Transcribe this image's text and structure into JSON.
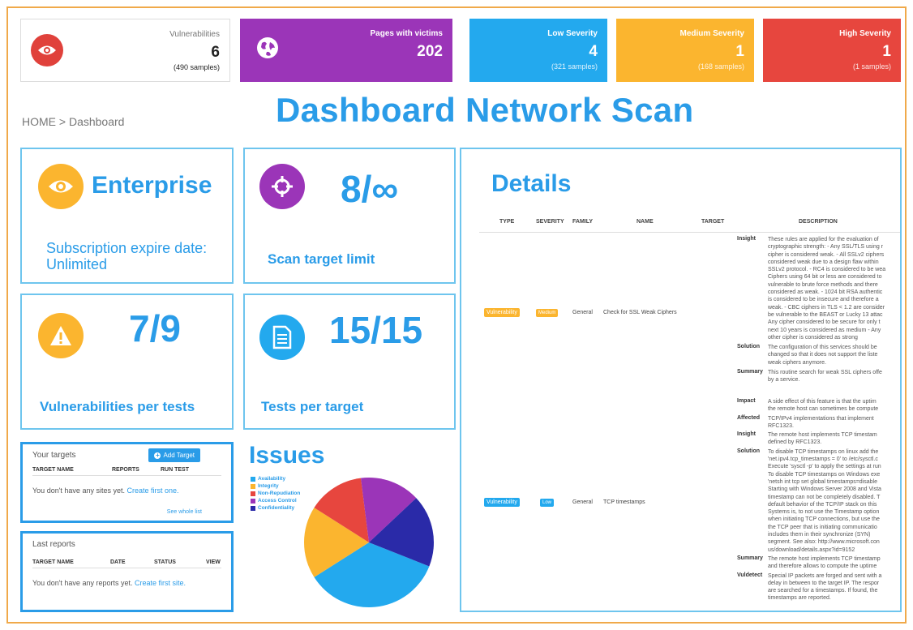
{
  "stats": [
    {
      "label": "Vulnerabilities",
      "value": "6",
      "samples": "(490 samples)",
      "color": "#e0413b",
      "icon": "eye-icon"
    },
    {
      "label": "Pages with victims",
      "value": "202",
      "samples": "",
      "color": "#9b35b8",
      "icon": "globe-icon"
    },
    {
      "label": "Low Severity",
      "value": "4",
      "samples": "(321 samples)",
      "color": "#23a9ee"
    },
    {
      "label": "Medium Severity",
      "value": "1",
      "samples": "(168 samples)",
      "color": "#fbb52f"
    },
    {
      "label": "High Severity",
      "value": "1",
      "samples": "(1 samples)",
      "color": "#e7463e"
    }
  ],
  "breadcrumb": "HOME > Dashboard",
  "headline": "Dashboard Network Scan",
  "enterprise": {
    "title": "Enterprise",
    "subtitle": "Subscription expire date: Unlimited",
    "icon": "eye-icon"
  },
  "scan_limit": {
    "value": "8/∞",
    "caption": "Scan target limit",
    "icon": "crosshair-icon"
  },
  "vuln_tests": {
    "value": "7/9",
    "caption": "Vulnerabilities per tests",
    "icon": "warning-icon"
  },
  "tests_target": {
    "value": "15/15",
    "caption": "Tests per target",
    "icon": "document-icon"
  },
  "targets": {
    "title": "Your targets",
    "add_button": "Add Target",
    "columns": [
      "TARGET NAME",
      "REPORTS",
      "RUN TEST"
    ],
    "empty_text": "You don't have any sites yet.",
    "empty_link": "Create first one.",
    "whole_list": "See whole list"
  },
  "reports": {
    "title": "Last reports",
    "columns": [
      "TARGET NAME",
      "DATE",
      "STATUS",
      "VIEW"
    ],
    "empty_text": "You don't have any reports yet.",
    "empty_link": "Create first site."
  },
  "issues": {
    "title": "Issues",
    "legend": [
      {
        "name": "Availability",
        "color": "#23a9ee"
      },
      {
        "name": "Integrity",
        "color": "#fbb52f"
      },
      {
        "name": "Non-Repudiation",
        "color": "#e7463e"
      },
      {
        "name": "Access Control",
        "color": "#9b35b8"
      },
      {
        "name": "Confidentiality",
        "color": "#2a2aa8"
      }
    ]
  },
  "chart_data": {
    "type": "pie",
    "labels": [
      "Availability",
      "Integrity",
      "Non-Repudiation",
      "Access Control",
      "Confidentiality"
    ],
    "values": [
      35,
      18,
      14,
      15,
      18
    ],
    "colors": [
      "#23a9ee",
      "#fbb52f",
      "#e7463e",
      "#9b35b8",
      "#2a2aa8"
    ],
    "title": "",
    "legend": "left"
  },
  "details": {
    "title": "Details",
    "columns": [
      "TYPE",
      "SEVERITY",
      "FAMILY",
      "NAME",
      "TARGET",
      "DESCRIPTION"
    ],
    "rows": [
      {
        "type": "Vulnerability",
        "severity": "Medium",
        "family": "General",
        "name": "Check for SSL Weak Ciphers",
        "desc": [
          {
            "key": "Insight",
            "lines": [
              "These rules are applied for the evaluation of",
              "cryptographic strength: - Any SSL/TLS using r",
              "cipher is considered weak. - All SSLv2 ciphers",
              "considered weak due to a design flaw within",
              "SSLv2 protocol. - RC4 is considered to be wea",
              "Ciphers using 64 bit or less are considered to",
              "vulnerable to brute force methods and there",
              "considered as weak. - 1024 bit RSA authentic",
              "is considered to be insecure and therefore a",
              "weak. - CBC ciphers in TLS < 1.2 are consider",
              "be vulnerable to the BEAST or Lucky 13 attac",
              "Any cipher considered to be secure for only t",
              "next 10 years is considered as medium - Any",
              "other cipher is considered as strong"
            ]
          },
          {
            "key": "Solution",
            "lines": [
              "The configuration of this services should be",
              "changed so that it does not support the liste",
              "weak ciphers anymore."
            ]
          },
          {
            "key": "Summary",
            "lines": [
              "This routine search for weak SSL ciphers offe",
              "by a service."
            ]
          }
        ]
      },
      {
        "type": "Vulnerability",
        "severity": "Low",
        "family": "General",
        "name": "TCP timestamps",
        "desc": [
          {
            "key": "Impact",
            "lines": [
              "A side effect of this feature is that the uptim",
              "the remote host can sometimes be compute"
            ]
          },
          {
            "key": "Affected",
            "lines": [
              "TCP/IPv4 implementations that implement",
              "RFC1323."
            ]
          },
          {
            "key": "Insight",
            "lines": [
              "The remote host implements TCP timestam",
              "defined by RFC1323."
            ]
          },
          {
            "key": "Solution",
            "lines": [
              "To disable TCP timestamps on linux add the",
              "'net.ipv4.tcp_timestamps = 0' to /etc/sysctl.c",
              "Execute 'sysctl -p' to apply the settings at run",
              "To disable TCP timestamps on Windows exe",
              "'netsh int tcp set global timestamps=disable",
              "Starting with Windows Server 2008 and Vista",
              "timestamp can not be completely disabled. T",
              "default behavior of the TCP/IP stack on this",
              "Systems is, to not use the Timestamp option",
              "when initiating TCP connections, but use the",
              "the TCP peer that is initiating communicatio",
              "includes them in their synchronize (SYN)",
              "segment. See also: http://www.microsoft.con",
              "us/download/details.aspx?id=9152"
            ]
          },
          {
            "key": "Summary",
            "lines": [
              "The remote host implements TCP timestamp",
              "and therefore allows to compute the uptime"
            ]
          },
          {
            "key": "Vuldetect",
            "lines": [
              "Special IP packets are forged and sent with a",
              "delay in between to the target IP. The respor",
              "are searched for a timestamps. If found, the",
              "timestamps are reported."
            ]
          }
        ]
      }
    ]
  }
}
